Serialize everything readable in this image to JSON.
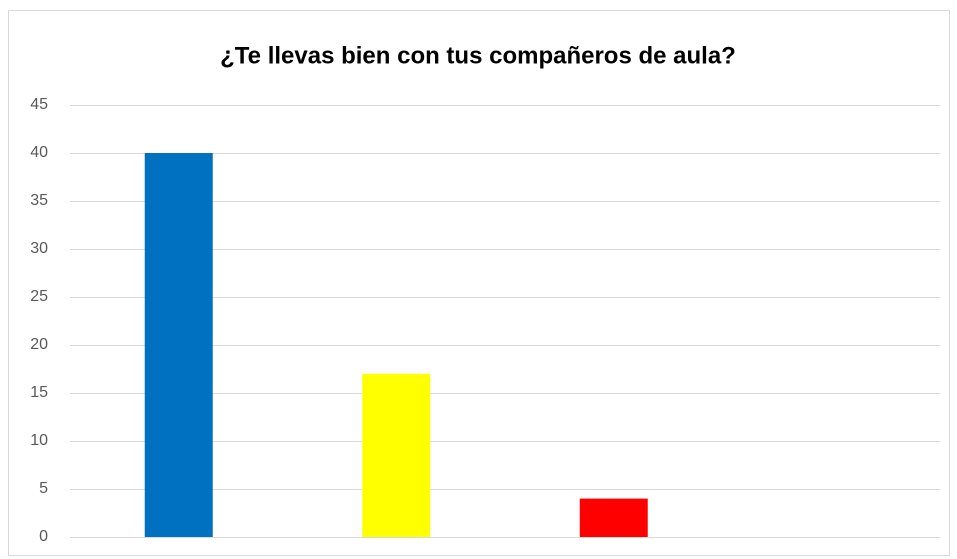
{
  "chart_data": {
    "type": "bar",
    "title": "¿Te llevas bien con tus compañeros de aula?",
    "categories": [
      null,
      null,
      null
    ],
    "values": [
      40,
      17,
      4
    ],
    "colors": [
      "#0070c0",
      "#ffff00",
      "#ff0000"
    ],
    "ylim": [
      0,
      45
    ],
    "yticks": [
      0,
      5,
      10,
      15,
      20,
      25,
      30,
      35,
      40,
      45
    ],
    "grid": true
  }
}
